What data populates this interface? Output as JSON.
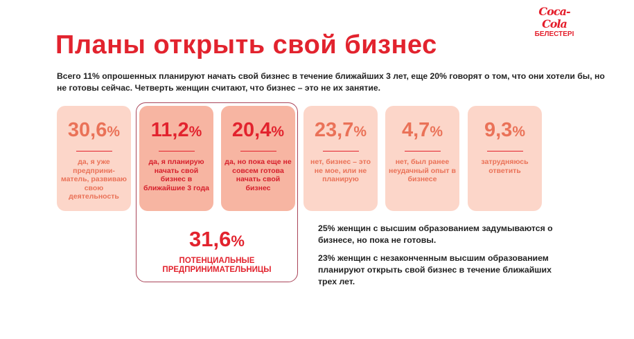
{
  "logo": {
    "brand": "Coca-Cola",
    "subtitle": "БЕЛЕСТЕРІ"
  },
  "title": "Планы открыть свой бизнес",
  "lead": "Всего 11% опрошенных планируют начать свой бизнес в течение ближайших 3 лет, еще 20% говорят о том, что они хотели бы, но не готовы сейчас. Четверть женщин считают, что бизнес – это не их занятие.",
  "cards": [
    {
      "value": "30,6",
      "unit": "%",
      "label": "да, я уже предприни-матель, развиваю свою деятельность"
    },
    {
      "value": "11,2",
      "unit": "%",
      "label": "да, я планирую начать свой бизнес в ближайшие 3 года"
    },
    {
      "value": "20,4",
      "unit": "%",
      "label": "да, но пока еще не совсем готова начать свой бизнес"
    },
    {
      "value": "23,7",
      "unit": "%",
      "label": "нет, бизнес – это не мое, или не планирую"
    },
    {
      "value": "4,7",
      "unit": "%",
      "label": "нет, был ранее неудачный опыт в бизнесе"
    },
    {
      "value": "9,3",
      "unit": "%",
      "label": "затрудняюсь ответить"
    }
  ],
  "total": {
    "value": "31,6",
    "unit": "%",
    "caption_1": "ПОТЕНЦИАЛЬНЫЕ",
    "caption_2": "ПРЕДПРИНИМАТЕЛЬНИЦЫ"
  },
  "notes": [
    "25% женщин с высшим образованием задумываются о бизнесе, но пока не готовы.",
    "23% женщин с незаконченным высшим образованием планируют открыть свой бизнес в течение ближайших трех лет."
  ]
}
